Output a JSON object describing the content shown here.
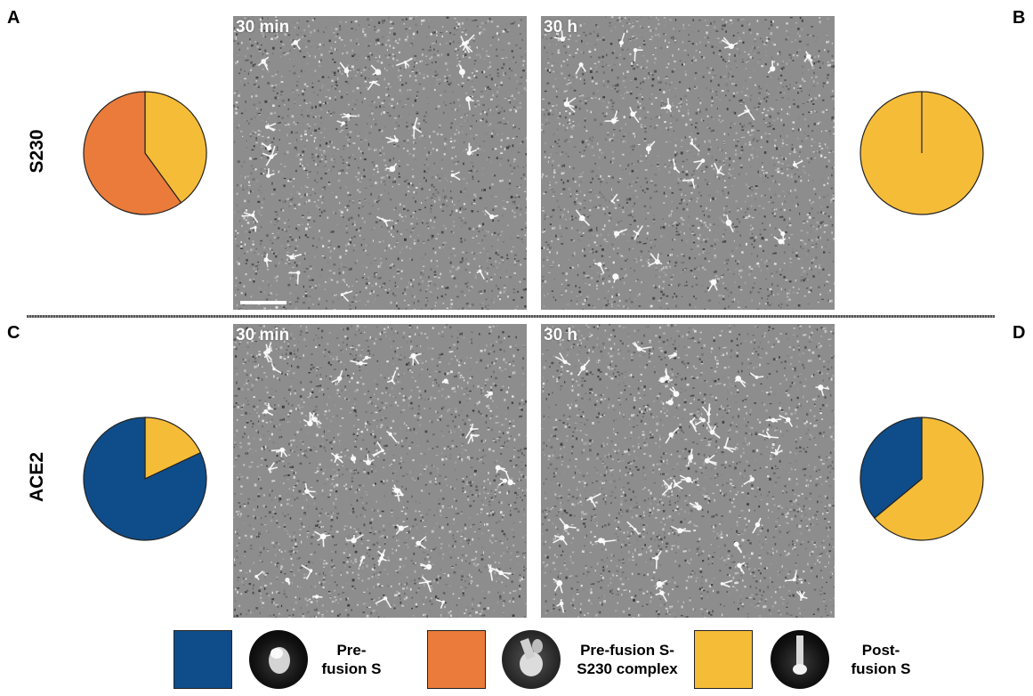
{
  "panels": {
    "A": "A",
    "B": "B",
    "C": "C",
    "D": "D"
  },
  "rows": {
    "top_label": "S230",
    "bottom_label": "ACE2"
  },
  "micrographs": {
    "top_left_time": "30 min",
    "top_right_time": "30 h",
    "bottom_left_time": "30 min",
    "bottom_right_time": "30 h"
  },
  "legend": {
    "items": [
      {
        "line1": "Pre-",
        "line2": "fusion S",
        "color": "#0f4d8a"
      },
      {
        "line1": "Pre-fusion S-",
        "line2": "S230 complex",
        "color": "#ea7b3b"
      },
      {
        "line1": "Post-",
        "line2": "fusion S",
        "color": "#f5bc38"
      }
    ]
  },
  "chart_data": [
    {
      "type": "pie",
      "panel": "A",
      "labels": [
        "Post-fusion S",
        "Pre-fusion S-S230 complex"
      ],
      "values": [
        40,
        60
      ],
      "colors": [
        "#f5bc38",
        "#ea7b3b"
      ]
    },
    {
      "type": "pie",
      "panel": "B",
      "labels": [
        "Post-fusion S"
      ],
      "values": [
        100
      ],
      "colors": [
        "#f5bc38"
      ]
    },
    {
      "type": "pie",
      "panel": "C",
      "labels": [
        "Post-fusion S",
        "Pre-fusion S"
      ],
      "values": [
        18,
        82
      ],
      "colors": [
        "#f5bc38",
        "#0f4d8a"
      ]
    },
    {
      "type": "pie",
      "panel": "D",
      "labels": [
        "Post-fusion S",
        "Pre-fusion S"
      ],
      "values": [
        64,
        36
      ],
      "colors": [
        "#f5bc38",
        "#0f4d8a"
      ]
    }
  ]
}
